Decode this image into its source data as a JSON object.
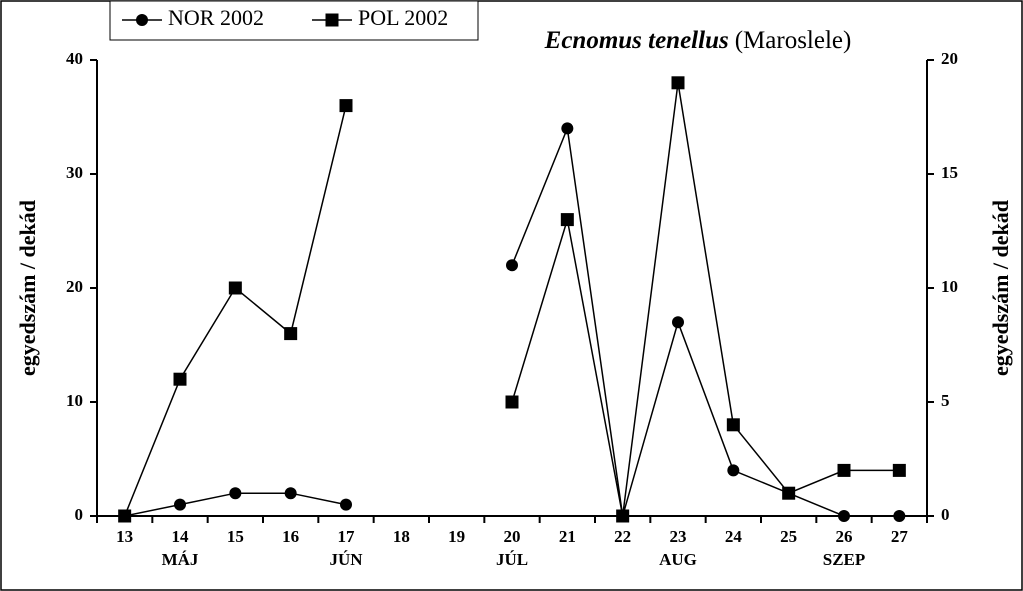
{
  "chart_data": {
    "type": "line",
    "title": "Ecnomus tenellus",
    "subtitle": "(Maroslele)",
    "y_label": "egyedszám / dekád",
    "y2_label": "egyedszám / dekád",
    "categories": [
      "13",
      "14",
      "15",
      "16",
      "17",
      "18",
      "19",
      "20",
      "21",
      "22",
      "23",
      "24",
      "25",
      "26",
      "27"
    ],
    "months": [
      null,
      "MÁJ",
      null,
      null,
      "JÚN",
      null,
      null,
      "JÚL",
      null,
      null,
      "AUG",
      null,
      null,
      "SZEP",
      null
    ],
    "series": [
      {
        "name": "NOR 2002",
        "color": "#000000",
        "marker": "circle",
        "axis": "y",
        "values": [
          0,
          1,
          2,
          2,
          1,
          null,
          null,
          22,
          34,
          0,
          17,
          4,
          2,
          0,
          0
        ]
      },
      {
        "name": "POL 2002",
        "color": "#000000",
        "marker": "square",
        "axis": "y2",
        "values": [
          0,
          6,
          10,
          8,
          18,
          null,
          null,
          5,
          13,
          0,
          19,
          4,
          1,
          2,
          2
        ]
      }
    ],
    "ylim": [
      0,
      40
    ],
    "yticks": [
      0,
      10,
      20,
      30,
      40
    ],
    "y2lim": [
      0,
      20
    ],
    "y2ticks": [
      0,
      5,
      10,
      15,
      20
    ],
    "grid": false,
    "legend": "top-left"
  }
}
